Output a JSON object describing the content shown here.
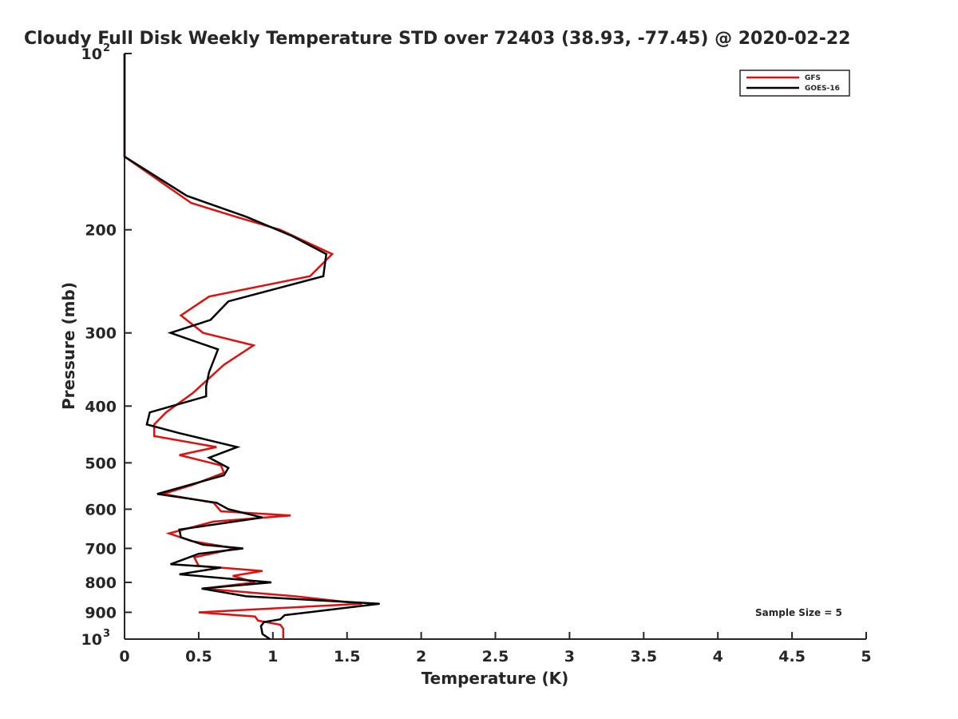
{
  "chart_data": {
    "type": "line",
    "title": "Cloudy Full Disk Weekly Temperature STD over 72403 (38.93, -77.45) @ 2020-02-22",
    "xlabel": "Temperature (K)",
    "ylabel": "Pressure (mb)",
    "xlim": [
      0,
      5
    ],
    "ylim": [
      100,
      1000
    ],
    "y_scale": "log",
    "y_reversed": true,
    "grid": false,
    "legend_position": "top-right",
    "x_ticks": [
      "0",
      "0.5",
      "1",
      "1.5",
      "2",
      "2.5",
      "3",
      "3.5",
      "4",
      "4.5",
      "5"
    ],
    "y_ticks": [
      {
        "value": 100,
        "base": "10",
        "exp": "2"
      },
      {
        "value": 200,
        "label": "200"
      },
      {
        "value": 300,
        "label": "300"
      },
      {
        "value": 400,
        "label": "400"
      },
      {
        "value": 500,
        "label": "500"
      },
      {
        "value": 600,
        "label": "600"
      },
      {
        "value": 700,
        "label": "700"
      },
      {
        "value": 800,
        "label": "800"
      },
      {
        "value": 900,
        "label": "900"
      },
      {
        "value": 1000,
        "base": "10",
        "exp": "3"
      }
    ],
    "annotation": "Sample Size = 5",
    "series": [
      {
        "name": "GFS",
        "color": "#e01010",
        "points": [
          [
            0,
            100
          ],
          [
            0,
            150
          ],
          [
            0.45,
            180
          ],
          [
            0.75,
            190
          ],
          [
            1.05,
            200
          ],
          [
            1.4,
            220
          ],
          [
            1.25,
            240
          ],
          [
            0.57,
            260
          ],
          [
            0.38,
            280
          ],
          [
            0.53,
            300
          ],
          [
            0.87,
            315
          ],
          [
            0.67,
            340
          ],
          [
            0.46,
            380
          ],
          [
            0.28,
            410
          ],
          [
            0.2,
            430
          ],
          [
            0.2,
            450
          ],
          [
            0.62,
            470
          ],
          [
            0.37,
            485
          ],
          [
            0.65,
            505
          ],
          [
            0.67,
            520
          ],
          [
            0.46,
            545
          ],
          [
            0.26,
            565
          ],
          [
            0.6,
            585
          ],
          [
            0.65,
            605
          ],
          [
            1.12,
            615
          ],
          [
            0.6,
            630
          ],
          [
            0.3,
            660
          ],
          [
            0.45,
            680
          ],
          [
            0.75,
            700
          ],
          [
            0.47,
            725
          ],
          [
            0.5,
            750
          ],
          [
            0.93,
            765
          ],
          [
            0.73,
            780
          ],
          [
            0.88,
            800
          ],
          [
            0.53,
            820
          ],
          [
            1.15,
            845
          ],
          [
            1.6,
            870
          ],
          [
            0.5,
            900
          ],
          [
            0.88,
            915
          ],
          [
            0.9,
            930
          ],
          [
            1.05,
            945
          ],
          [
            1.07,
            960
          ],
          [
            1.07,
            1000
          ]
        ]
      },
      {
        "name": "GOES-16",
        "color": "#000000",
        "points": [
          [
            0,
            100
          ],
          [
            0,
            150
          ],
          [
            0.42,
            175
          ],
          [
            0.82,
            190
          ],
          [
            1.13,
            205
          ],
          [
            1.36,
            220
          ],
          [
            1.34,
            240
          ],
          [
            0.7,
            265
          ],
          [
            0.58,
            285
          ],
          [
            0.31,
            300
          ],
          [
            0.63,
            320
          ],
          [
            0.57,
            350
          ],
          [
            0.55,
            370
          ],
          [
            0.55,
            385
          ],
          [
            0.17,
            410
          ],
          [
            0.15,
            430
          ],
          [
            0.37,
            445
          ],
          [
            0.76,
            470
          ],
          [
            0.57,
            490
          ],
          [
            0.7,
            510
          ],
          [
            0.67,
            525
          ],
          [
            0.22,
            565
          ],
          [
            0.62,
            585
          ],
          [
            0.7,
            600
          ],
          [
            0.93,
            620
          ],
          [
            0.37,
            650
          ],
          [
            0.38,
            670
          ],
          [
            0.53,
            690
          ],
          [
            0.8,
            700
          ],
          [
            0.5,
            715
          ],
          [
            0.31,
            745
          ],
          [
            0.65,
            755
          ],
          [
            0.37,
            775
          ],
          [
            0.99,
            800
          ],
          [
            0.52,
            820
          ],
          [
            0.82,
            845
          ],
          [
            1.72,
            870
          ],
          [
            1.08,
            910
          ],
          [
            1.05,
            925
          ],
          [
            0.94,
            935
          ],
          [
            0.92,
            950
          ],
          [
            0.93,
            980
          ],
          [
            0.98,
            1000
          ]
        ]
      }
    ]
  }
}
